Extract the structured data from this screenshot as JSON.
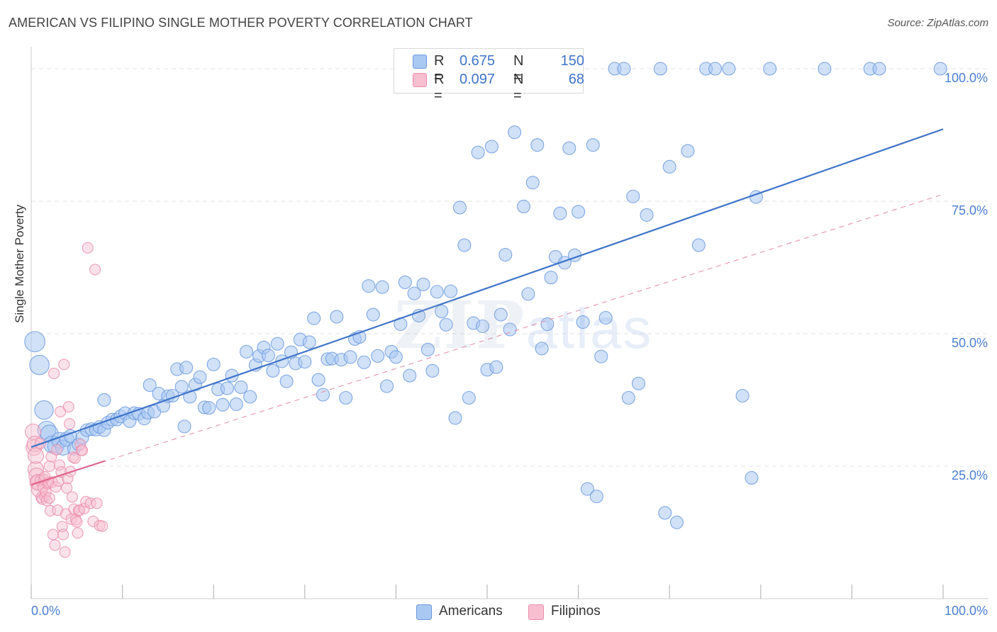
{
  "title": "AMERICAN VS FILIPINO SINGLE MOTHER POVERTY CORRELATION CHART",
  "source": "Source: ZipAtlas.com",
  "watermark": {
    "zip": "ZIP",
    "atlas": "atlas"
  },
  "legend": {
    "rows": [
      {
        "r_label": "R =",
        "r_value": "0.675",
        "n_label": "N =",
        "n_value": "150",
        "color": "#a9c8f2",
        "border": "#6f9be0"
      },
      {
        "r_label": "R =",
        "r_value": "0.097",
        "n_label": "N =",
        "n_value": "68",
        "color": "#f7bfd0",
        "border": "#ec8fae"
      }
    ]
  },
  "bottom_legend": [
    {
      "label": "Americans",
      "color": "#a9c8f2",
      "border": "#6f9be0"
    },
    {
      "label": "Filipinos",
      "color": "#f7bfd0",
      "border": "#ec8fae"
    }
  ],
  "chart_data": {
    "type": "scatter",
    "title": "AMERICAN VS FILIPINO SINGLE MOTHER POVERTY CORRELATION CHART",
    "xlabel": "",
    "ylabel": "Single Mother Poverty",
    "x_tick_labels": [
      "0.0%",
      "100.0%"
    ],
    "y_tick_labels": [
      "25.0%",
      "50.0%",
      "75.0%",
      "100.0%"
    ],
    "y_tick_values": [
      25,
      50,
      75,
      100
    ],
    "xlim": [
      0,
      100
    ],
    "ylim": [
      0,
      102
    ],
    "grid": "horizontal dashed",
    "series": [
      {
        "name": "Americans",
        "color": "#6f9be0",
        "fill": "#a9c8f2",
        "trend": {
          "x": [
            0,
            100
          ],
          "y": [
            28.6,
            88.6
          ],
          "style": "solid",
          "color": "#3f74c9"
        },
        "points": [
          [
            0.4,
            48.5
          ],
          [
            0.9,
            44.1
          ],
          [
            1.4,
            35.6
          ],
          [
            1.7,
            31.8
          ],
          [
            2.0,
            31.1
          ],
          [
            2.3,
            29.1
          ],
          [
            2.7,
            28.8
          ],
          [
            3.1,
            29.9
          ],
          [
            3.5,
            28.5
          ],
          [
            3.9,
            30.1
          ],
          [
            4.3,
            30.7
          ],
          [
            4.7,
            28.3
          ],
          [
            5.2,
            29.1
          ],
          [
            5.6,
            30.4
          ],
          [
            6.1,
            31.8
          ],
          [
            6.6,
            32.0
          ],
          [
            7.1,
            31.9
          ],
          [
            7.5,
            32.4
          ],
          [
            8.0,
            31.8
          ],
          [
            8.4,
            33.2
          ],
          [
            8.9,
            33.8
          ],
          [
            9.4,
            33.8
          ],
          [
            9.8,
            34.4
          ],
          [
            10.3,
            35.0
          ],
          [
            10.8,
            33.5
          ],
          [
            11.3,
            35.0
          ],
          [
            11.8,
            34.9
          ],
          [
            12.4,
            34.0
          ],
          [
            12.8,
            35.1
          ],
          [
            13.0,
            40.3
          ],
          [
            13.5,
            35.3
          ],
          [
            14.0,
            38.7
          ],
          [
            14.5,
            36.4
          ],
          [
            15.0,
            38.2
          ],
          [
            15.5,
            38.3
          ],
          [
            16.0,
            43.3
          ],
          [
            16.5,
            40.0
          ],
          [
            17.0,
            43.6
          ],
          [
            17.4,
            38.1
          ],
          [
            18.0,
            40.4
          ],
          [
            18.5,
            41.8
          ],
          [
            19.0,
            36.1
          ],
          [
            19.5,
            36.0
          ],
          [
            20.0,
            44.2
          ],
          [
            20.5,
            39.5
          ],
          [
            21.0,
            36.6
          ],
          [
            21.5,
            39.7
          ],
          [
            22.0,
            42.1
          ],
          [
            22.5,
            36.7
          ],
          [
            23.0,
            39.9
          ],
          [
            23.6,
            46.6
          ],
          [
            24.0,
            38.1
          ],
          [
            24.6,
            44.1
          ],
          [
            25.0,
            45.8
          ],
          [
            25.5,
            47.4
          ],
          [
            26.0,
            45.9
          ],
          [
            26.5,
            43.0
          ],
          [
            27.0,
            48.1
          ],
          [
            27.5,
            44.8
          ],
          [
            28.0,
            41.0
          ],
          [
            28.5,
            46.5
          ],
          [
            29.0,
            44.4
          ],
          [
            29.5,
            48.9
          ],
          [
            30.0,
            44.7
          ],
          [
            30.5,
            48.4
          ],
          [
            31.0,
            52.9
          ],
          [
            31.5,
            41.3
          ],
          [
            32.0,
            38.5
          ],
          [
            32.5,
            45.2
          ],
          [
            33.0,
            45.3
          ],
          [
            33.5,
            53.2
          ],
          [
            34.0,
            45.1
          ],
          [
            34.5,
            37.9
          ],
          [
            35.0,
            45.6
          ],
          [
            35.5,
            49.0
          ],
          [
            36.0,
            49.4
          ],
          [
            36.5,
            44.6
          ],
          [
            37.0,
            59.0
          ],
          [
            37.5,
            53.6
          ],
          [
            38.0,
            45.8
          ],
          [
            38.5,
            58.8
          ],
          [
            39.0,
            40.1
          ],
          [
            39.5,
            46.6
          ],
          [
            40.0,
            45.6
          ],
          [
            40.5,
            51.8
          ],
          [
            41.0,
            59.7
          ],
          [
            41.5,
            42.1
          ],
          [
            42.0,
            57.6
          ],
          [
            42.5,
            53.4
          ],
          [
            43.0,
            59.3
          ],
          [
            43.5,
            47.0
          ],
          [
            44.0,
            43.0
          ],
          [
            44.5,
            57.9
          ],
          [
            45.0,
            54.2
          ],
          [
            45.5,
            51.7
          ],
          [
            46.0,
            58.0
          ],
          [
            46.5,
            34.1
          ],
          [
            47.0,
            73.8
          ],
          [
            47.5,
            66.7
          ],
          [
            48.0,
            37.9
          ],
          [
            48.5,
            52.0
          ],
          [
            49.0,
            84.2
          ],
          [
            49.5,
            51.4
          ],
          [
            50.0,
            43.2
          ],
          [
            50.5,
            85.3
          ],
          [
            51.0,
            43.7
          ],
          [
            51.5,
            53.6
          ],
          [
            52.0,
            64.9
          ],
          [
            52.5,
            50.8
          ],
          [
            53.0,
            88.0
          ],
          [
            53.5,
            100.0
          ],
          [
            54.0,
            74.0
          ],
          [
            54.5,
            57.5
          ],
          [
            55.0,
            78.5
          ],
          [
            55.5,
            85.6
          ],
          [
            56.0,
            47.2
          ],
          [
            56.6,
            51.8
          ],
          [
            57.0,
            60.6
          ],
          [
            57.5,
            64.5
          ],
          [
            58.0,
            72.7
          ],
          [
            58.5,
            63.4
          ],
          [
            59.0,
            85.0
          ],
          [
            59.6,
            64.8
          ],
          [
            60.0,
            73.0
          ],
          [
            60.5,
            52.2
          ],
          [
            61.0,
            20.7
          ],
          [
            61.6,
            85.6
          ],
          [
            62.0,
            19.3
          ],
          [
            62.5,
            45.7
          ],
          [
            63.0,
            53.0
          ],
          [
            64.0,
            100.0
          ],
          [
            65.0,
            100.0
          ],
          [
            65.5,
            37.9
          ],
          [
            66.0,
            75.9
          ],
          [
            66.6,
            40.6
          ],
          [
            67.5,
            72.4
          ],
          [
            69.0,
            100.0
          ],
          [
            69.5,
            16.2
          ],
          [
            70.0,
            81.5
          ],
          [
            70.8,
            14.4
          ],
          [
            72.0,
            84.5
          ],
          [
            73.2,
            66.7
          ],
          [
            74.0,
            100.0
          ],
          [
            75.0,
            100.0
          ],
          [
            76.5,
            100.0
          ],
          [
            78.0,
            38.3
          ],
          [
            79.0,
            22.8
          ],
          [
            79.5,
            75.8
          ],
          [
            81.0,
            100.0
          ],
          [
            87.0,
            100.0
          ],
          [
            92.0,
            100.0
          ],
          [
            93.0,
            100.0
          ],
          [
            99.7,
            100.0
          ],
          [
            8.0,
            37.5
          ],
          [
            16.8,
            32.5
          ]
        ]
      },
      {
        "name": "Filipinos",
        "color": "#ec8fae",
        "fill": "#f7bfd0",
        "trend": {
          "x": [
            0,
            8.1
          ],
          "y": [
            21.5,
            26.0
          ],
          "style": "solid",
          "color": "#e0658c"
        },
        "trend_extended": {
          "x": [
            0,
            100
          ],
          "y": [
            21.5,
            76.3
          ],
          "style": "dashed",
          "color": "#e89ab4"
        },
        "points": [
          [
            0.2,
            31.5
          ],
          [
            0.3,
            28.5
          ],
          [
            0.4,
            29.2
          ],
          [
            0.5,
            24.4
          ],
          [
            0.6,
            23.2
          ],
          [
            0.7,
            21.9
          ],
          [
            0.8,
            22.0
          ],
          [
            0.9,
            20.6
          ],
          [
            1.0,
            22.3
          ],
          [
            1.1,
            19.1
          ],
          [
            1.2,
            18.8
          ],
          [
            1.3,
            21.0
          ],
          [
            1.4,
            22.5
          ],
          [
            1.5,
            19.3
          ],
          [
            1.6,
            20.1
          ],
          [
            1.7,
            18.5
          ],
          [
            1.8,
            21.7
          ],
          [
            1.9,
            22.0
          ],
          [
            2.0,
            19.0
          ],
          [
            2.1,
            16.6
          ],
          [
            2.2,
            26.8
          ],
          [
            2.3,
            22.0
          ],
          [
            2.4,
            12.1
          ],
          [
            2.5,
            42.5
          ],
          [
            2.6,
            10.1
          ],
          [
            2.7,
            21.1
          ],
          [
            2.8,
            28.1
          ],
          [
            2.9,
            16.7
          ],
          [
            3.0,
            22.2
          ],
          [
            3.1,
            25.2
          ],
          [
            3.2,
            35.3
          ],
          [
            3.3,
            23.9
          ],
          [
            3.4,
            13.6
          ],
          [
            3.5,
            12.1
          ],
          [
            3.6,
            44.2
          ],
          [
            3.7,
            8.8
          ],
          [
            3.8,
            16.0
          ],
          [
            3.9,
            20.9
          ],
          [
            4.0,
            22.7
          ],
          [
            4.1,
            36.2
          ],
          [
            4.2,
            33.0
          ],
          [
            4.3,
            24.0
          ],
          [
            4.4,
            15.0
          ],
          [
            4.5,
            19.2
          ],
          [
            4.6,
            26.7
          ],
          [
            4.7,
            16.9
          ],
          [
            4.8,
            26.5
          ],
          [
            4.9,
            14.9
          ],
          [
            5.0,
            14.5
          ],
          [
            5.1,
            12.4
          ],
          [
            5.2,
            16.6
          ],
          [
            5.3,
            16.7
          ],
          [
            5.4,
            29.1
          ],
          [
            5.5,
            28.0
          ],
          [
            5.6,
            28.0
          ],
          [
            5.8,
            17.0
          ],
          [
            6.0,
            18.3
          ],
          [
            6.2,
            66.2
          ],
          [
            6.5,
            18.0
          ],
          [
            6.8,
            14.6
          ],
          [
            7.0,
            62.1
          ],
          [
            7.2,
            18.0
          ],
          [
            7.5,
            13.8
          ],
          [
            7.8,
            13.7
          ],
          [
            0.5,
            27.0
          ],
          [
            1.0,
            29.3
          ],
          [
            1.5,
            23.0
          ],
          [
            2.0,
            25.0
          ]
        ]
      }
    ]
  }
}
